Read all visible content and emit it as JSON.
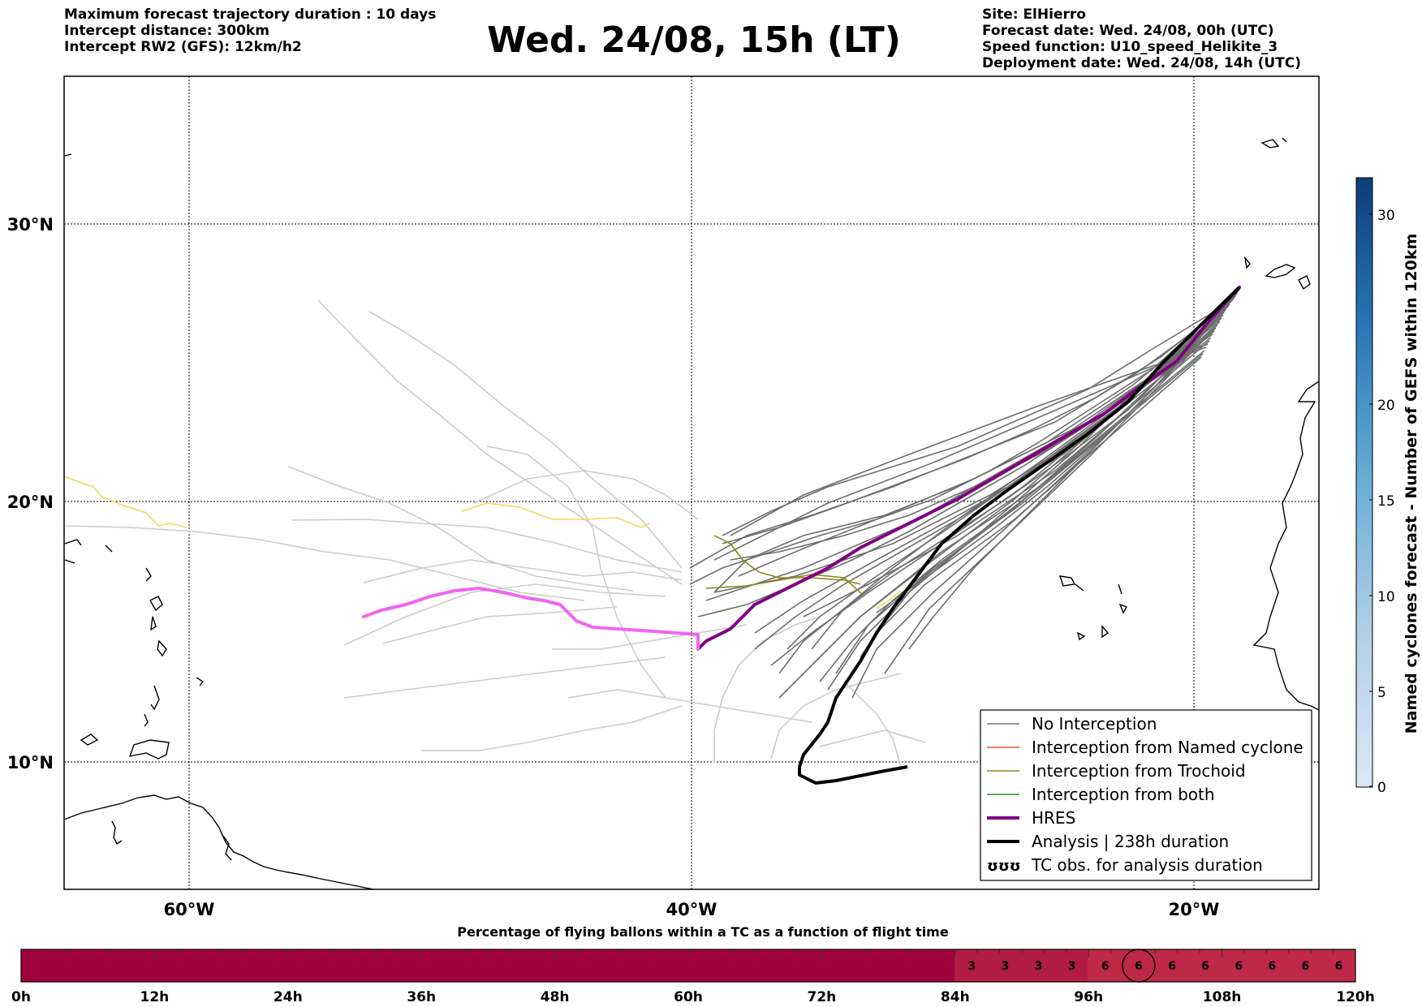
{
  "header_left": [
    "Maximum forecast trajectory duration : 10 days",
    "Intercept distance: 300km",
    "Intercept RW2 (GFS):  12km/h2"
  ],
  "title": "Wed. 24/08, 15h (LT)",
  "header_right": [
    "Site: ElHierro",
    "Forecast date: Wed. 24/08, 00h (UTC)",
    "Speed function: U10_speed_Helikite_3",
    "Deployment date: Wed. 24/08, 14h (UTC)"
  ],
  "map": {
    "lon_labels": [
      "60°W",
      "40°W",
      "20°W"
    ],
    "lat_labels": [
      "30°N",
      "20°N",
      "10°N"
    ],
    "lon_range": [
      -65,
      -15
    ],
    "lat_range": [
      5.4,
      34.8
    ],
    "gridlines": true
  },
  "legend": {
    "items": [
      {
        "label": "No Interception",
        "color": "#777777"
      },
      {
        "label": "Interception from Named cyclone",
        "color": "#e8582a"
      },
      {
        "label": "Interception from Trochoid",
        "color": "#8a8a1a"
      },
      {
        "label": "Interception from both",
        "color": "#2a8a2a"
      },
      {
        "label": "HRES",
        "color": "#800080"
      },
      {
        "label": "Analysis | 238h duration",
        "color": "#000000"
      },
      {
        "label": "TC obs. for analysis duration",
        "color": "#000000",
        "symbol": "ʊʊʊ"
      }
    ]
  },
  "colorbar": {
    "label": "Named cyclones forecast - Number of GEFS within 120km",
    "ticks": [
      "0",
      "5",
      "10",
      "15",
      "20",
      "30"
    ]
  },
  "bottom_bar": {
    "title": "Percentage of flying ballons within a TC as a function of flight time",
    "tick_labels": [
      "0h",
      "12h",
      "24h",
      "36h",
      "48h",
      "60h",
      "72h",
      "84h",
      "96h",
      "108h",
      "120h"
    ],
    "cell_values": [
      "3",
      "3",
      "3",
      "3",
      "6",
      "6",
      "6",
      "6",
      "6",
      "6",
      "6",
      "6"
    ],
    "current_cell": 5
  }
}
